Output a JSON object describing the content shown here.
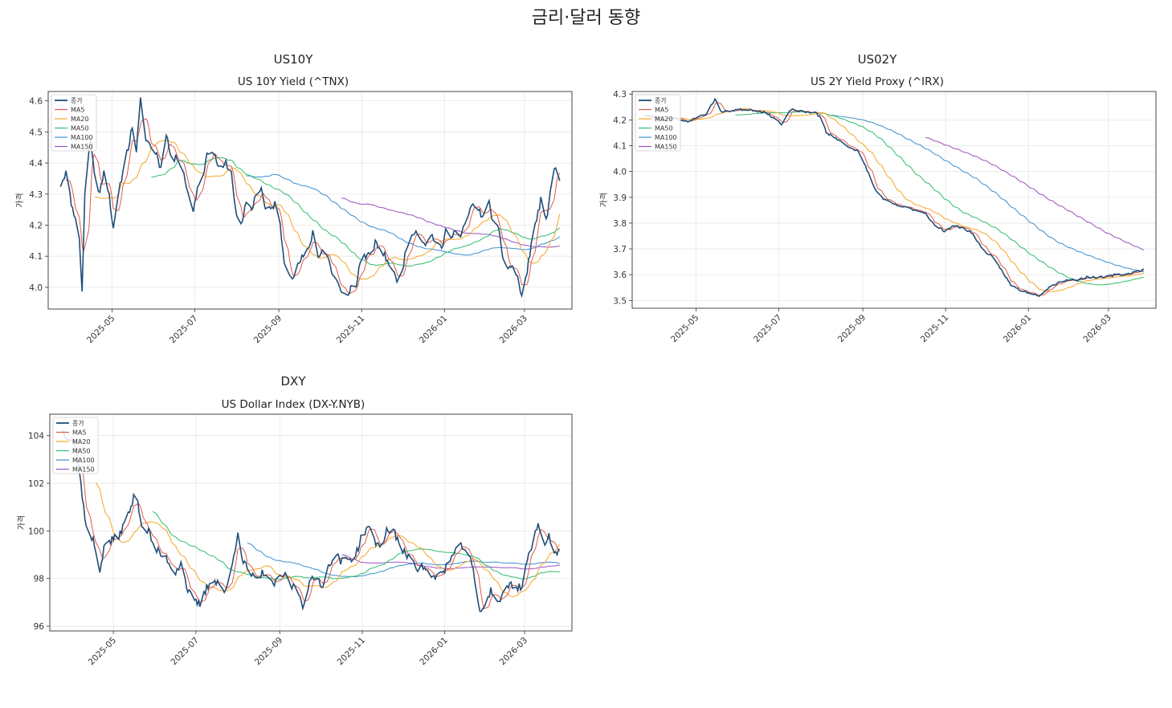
{
  "suptitle": "금리·달러 동향",
  "legend_labels": [
    "종가",
    "MA5",
    "MA20",
    "MA50",
    "MA100",
    "MA150"
  ],
  "series_colors": {
    "close": "#1f4e79",
    "ma5": "#e05a4a",
    "ma20": "#f5a623",
    "ma50": "#2ebd6b",
    "ma100": "#3a8fd0",
    "ma150": "#9b4fc0"
  },
  "chart_data": [
    {
      "type": "line",
      "panel_title": "US10Y",
      "title": "US 10Y Yield (^TNX)",
      "ylabel": "가격",
      "xlim": [
        "2025-03-15",
        "2026-04-05"
      ],
      "ylim": [
        3.93,
        4.63
      ],
      "x_ticks": [
        "2025-05",
        "2025-07",
        "2025-09",
        "2025-11",
        "2026-01",
        "2026-03"
      ],
      "y_ticks": [
        "4.0",
        "4.1",
        "4.2",
        "4.3",
        "4.4",
        "4.5",
        "4.6"
      ],
      "grid": true,
      "legend": "top-left",
      "start_date": "2025-03-24",
      "end_date": "2026-03-27",
      "close_anchors": [
        [
          "2025-03-24",
          4.33
        ],
        [
          "2025-03-28",
          4.37
        ],
        [
          "2025-04-02",
          4.25
        ],
        [
          "2025-04-05",
          4.22
        ],
        [
          "2025-04-07",
          4.15
        ],
        [
          "2025-04-09",
          3.99
        ],
        [
          "2025-04-11",
          4.3
        ],
        [
          "2025-04-15",
          4.48
        ],
        [
          "2025-04-18",
          4.37
        ],
        [
          "2025-04-22",
          4.3
        ],
        [
          "2025-04-25",
          4.38
        ],
        [
          "2025-04-29",
          4.3
        ],
        [
          "2025-05-02",
          4.18
        ],
        [
          "2025-05-06",
          4.3
        ],
        [
          "2025-05-10",
          4.4
        ],
        [
          "2025-05-14",
          4.47
        ],
        [
          "2025-05-16",
          4.52
        ],
        [
          "2025-05-19",
          4.44
        ],
        [
          "2025-05-22",
          4.6
        ],
        [
          "2025-05-26",
          4.48
        ],
        [
          "2025-05-30",
          4.45
        ],
        [
          "2025-06-03",
          4.43
        ],
        [
          "2025-06-06",
          4.38
        ],
        [
          "2025-06-10",
          4.5
        ],
        [
          "2025-06-14",
          4.4
        ],
        [
          "2025-06-18",
          4.42
        ],
        [
          "2025-06-22",
          4.39
        ],
        [
          "2025-06-26",
          4.3
        ],
        [
          "2025-06-30",
          4.25
        ],
        [
          "2025-07-03",
          4.32
        ],
        [
          "2025-07-08",
          4.38
        ],
        [
          "2025-07-12",
          4.46
        ],
        [
          "2025-07-16",
          4.42
        ],
        [
          "2025-07-20",
          4.37
        ],
        [
          "2025-07-24",
          4.4
        ],
        [
          "2025-07-28",
          4.37
        ],
        [
          "2025-08-01",
          4.22
        ],
        [
          "2025-08-05",
          4.2
        ],
        [
          "2025-08-08",
          4.28
        ],
        [
          "2025-08-12",
          4.25
        ],
        [
          "2025-08-15",
          4.3
        ],
        [
          "2025-08-19",
          4.32
        ],
        [
          "2025-08-22",
          4.25
        ],
        [
          "2025-08-26",
          4.25
        ],
        [
          "2025-08-29",
          4.27
        ],
        [
          "2025-09-02",
          4.2
        ],
        [
          "2025-09-05",
          4.08
        ],
        [
          "2025-09-09",
          4.05
        ],
        [
          "2025-09-12",
          4.03
        ],
        [
          "2025-09-16",
          4.08
        ],
        [
          "2025-09-19",
          4.1
        ],
        [
          "2025-09-23",
          4.12
        ],
        [
          "2025-09-26",
          4.18
        ],
        [
          "2025-09-30",
          4.1
        ],
        [
          "2025-10-03",
          4.12
        ],
        [
          "2025-10-07",
          4.1
        ],
        [
          "2025-10-10",
          4.05
        ],
        [
          "2025-10-14",
          4.02
        ],
        [
          "2025-10-17",
          3.98
        ],
        [
          "2025-10-21",
          3.97
        ],
        [
          "2025-10-24",
          4.0
        ],
        [
          "2025-10-28",
          4.0
        ],
        [
          "2025-10-31",
          4.09
        ],
        [
          "2025-11-04",
          4.1
        ],
        [
          "2025-11-07",
          4.1
        ],
        [
          "2025-11-11",
          4.14
        ],
        [
          "2025-11-14",
          4.13
        ],
        [
          "2025-11-18",
          4.1
        ],
        [
          "2025-11-21",
          4.08
        ],
        [
          "2025-11-25",
          4.04
        ],
        [
          "2025-11-28",
          4.02
        ],
        [
          "2025-12-02",
          4.08
        ],
        [
          "2025-12-05",
          4.14
        ],
        [
          "2025-12-09",
          4.18
        ],
        [
          "2025-12-12",
          4.18
        ],
        [
          "2025-12-16",
          4.15
        ],
        [
          "2025-12-19",
          4.14
        ],
        [
          "2025-12-23",
          4.17
        ],
        [
          "2025-12-26",
          4.14
        ],
        [
          "2025-12-30",
          4.12
        ],
        [
          "2026-01-02",
          4.18
        ],
        [
          "2026-01-06",
          4.17
        ],
        [
          "2026-01-09",
          4.18
        ],
        [
          "2026-01-13",
          4.16
        ],
        [
          "2026-01-16",
          4.2
        ],
        [
          "2026-01-20",
          4.25
        ],
        [
          "2026-01-23",
          4.27
        ],
        [
          "2026-01-27",
          4.24
        ],
        [
          "2026-01-30",
          4.23
        ],
        [
          "2026-02-03",
          4.27
        ],
        [
          "2026-02-06",
          4.21
        ],
        [
          "2026-02-10",
          4.18
        ],
        [
          "2026-02-13",
          4.1
        ],
        [
          "2026-02-17",
          4.06
        ],
        [
          "2026-02-20",
          4.07
        ],
        [
          "2026-02-24",
          4.03
        ],
        [
          "2026-02-27",
          3.97
        ],
        [
          "2026-03-03",
          4.05
        ],
        [
          "2026-03-06",
          4.14
        ],
        [
          "2026-03-10",
          4.22
        ],
        [
          "2026-03-13",
          4.28
        ],
        [
          "2026-03-17",
          4.21
        ],
        [
          "2026-03-20",
          4.31
        ],
        [
          "2026-03-24",
          4.39
        ],
        [
          "2026-03-27",
          4.34
        ]
      ]
    },
    {
      "type": "line",
      "panel_title": "US02Y",
      "title": "US 2Y Yield Proxy (^IRX)",
      "ylabel": "가격",
      "xlim": [
        "2025-03-15",
        "2026-04-05"
      ],
      "ylim": [
        3.47,
        4.31
      ],
      "x_ticks": [
        "2025-05",
        "2025-07",
        "2025-09",
        "2025-11",
        "2026-01",
        "2026-03"
      ],
      "y_ticks": [
        "3.5",
        "3.6",
        "3.7",
        "3.8",
        "3.9",
        "4.0",
        "4.1",
        "4.2",
        "4.3"
      ],
      "grid": true,
      "legend": "top-left",
      "start_date": "2025-03-24",
      "end_date": "2026-03-27",
      "close_anchors": [
        [
          "2025-03-24",
          4.22
        ],
        [
          "2025-04-05",
          4.2
        ],
        [
          "2025-04-15",
          4.21
        ],
        [
          "2025-04-25",
          4.19
        ],
        [
          "2025-05-01",
          4.21
        ],
        [
          "2025-05-08",
          4.22
        ],
        [
          "2025-05-15",
          4.28
        ],
        [
          "2025-05-20",
          4.23
        ],
        [
          "2025-06-01",
          4.24
        ],
        [
          "2025-06-10",
          4.24
        ],
        [
          "2025-06-20",
          4.23
        ],
        [
          "2025-06-30",
          4.2
        ],
        [
          "2025-07-03",
          4.18
        ],
        [
          "2025-07-10",
          4.24
        ],
        [
          "2025-07-20",
          4.23
        ],
        [
          "2025-07-28",
          4.23
        ],
        [
          "2025-08-02",
          4.2
        ],
        [
          "2025-08-05",
          4.15
        ],
        [
          "2025-08-12",
          4.13
        ],
        [
          "2025-08-20",
          4.1
        ],
        [
          "2025-08-28",
          4.08
        ],
        [
          "2025-09-03",
          4.02
        ],
        [
          "2025-09-10",
          3.93
        ],
        [
          "2025-09-17",
          3.89
        ],
        [
          "2025-09-25",
          3.87
        ],
        [
          "2025-10-03",
          3.86
        ],
        [
          "2025-10-10",
          3.85
        ],
        [
          "2025-10-17",
          3.84
        ],
        [
          "2025-10-24",
          3.79
        ],
        [
          "2025-10-31",
          3.77
        ],
        [
          "2025-11-07",
          3.79
        ],
        [
          "2025-11-14",
          3.78
        ],
        [
          "2025-11-21",
          3.76
        ],
        [
          "2025-11-28",
          3.7
        ],
        [
          "2025-12-05",
          3.67
        ],
        [
          "2025-12-12",
          3.62
        ],
        [
          "2025-12-19",
          3.56
        ],
        [
          "2025-12-26",
          3.54
        ],
        [
          "2026-01-02",
          3.53
        ],
        [
          "2026-01-09",
          3.52
        ],
        [
          "2026-01-16",
          3.55
        ],
        [
          "2026-01-23",
          3.57
        ],
        [
          "2026-01-30",
          3.58
        ],
        [
          "2026-02-06",
          3.58
        ],
        [
          "2026-02-13",
          3.59
        ],
        [
          "2026-02-20",
          3.59
        ],
        [
          "2026-02-27",
          3.59
        ],
        [
          "2026-03-06",
          3.6
        ],
        [
          "2026-03-13",
          3.6
        ],
        [
          "2026-03-20",
          3.61
        ],
        [
          "2026-03-27",
          3.62
        ]
      ]
    },
    {
      "type": "line",
      "panel_title": "DXY",
      "title": "US Dollar Index (DX-Y.NYB)",
      "ylabel": "가격",
      "xlim": [
        "2025-03-15",
        "2026-04-05"
      ],
      "ylim": [
        95.8,
        104.9
      ],
      "x_ticks": [
        "2025-05",
        "2025-07",
        "2025-09",
        "2025-11",
        "2026-01",
        "2026-03"
      ],
      "y_ticks": [
        "96",
        "98",
        "100",
        "102",
        "104"
      ],
      "grid": true,
      "legend": "top-left",
      "start_date": "2025-03-24",
      "end_date": "2026-03-27",
      "close_anchors": [
        [
          "2025-03-24",
          104.2
        ],
        [
          "2025-03-28",
          104.0
        ],
        [
          "2025-04-02",
          103.8
        ],
        [
          "2025-04-06",
          102.5
        ],
        [
          "2025-04-09",
          101.0
        ],
        [
          "2025-04-12",
          99.8
        ],
        [
          "2025-04-16",
          99.6
        ],
        [
          "2025-04-21",
          98.4
        ],
        [
          "2025-04-25",
          99.5
        ],
        [
          "2025-04-30",
          99.6
        ],
        [
          "2025-05-05",
          99.8
        ],
        [
          "2025-05-10",
          100.4
        ],
        [
          "2025-05-14",
          101.0
        ],
        [
          "2025-05-18",
          101.7
        ],
        [
          "2025-05-22",
          100.2
        ],
        [
          "2025-05-27",
          100.0
        ],
        [
          "2025-05-31",
          99.3
        ],
        [
          "2025-06-05",
          99.0
        ],
        [
          "2025-06-10",
          98.8
        ],
        [
          "2025-06-15",
          98.2
        ],
        [
          "2025-06-20",
          98.7
        ],
        [
          "2025-06-25",
          97.5
        ],
        [
          "2025-06-30",
          97.0
        ],
        [
          "2025-07-04",
          96.9
        ],
        [
          "2025-07-09",
          97.6
        ],
        [
          "2025-07-14",
          98.0
        ],
        [
          "2025-07-18",
          97.8
        ],
        [
          "2025-07-23",
          97.4
        ],
        [
          "2025-07-28",
          98.6
        ],
        [
          "2025-08-01",
          100.0
        ],
        [
          "2025-08-05",
          98.7
        ],
        [
          "2025-08-10",
          98.2
        ],
        [
          "2025-08-15",
          97.9
        ],
        [
          "2025-08-20",
          98.3
        ],
        [
          "2025-08-25",
          97.8
        ],
        [
          "2025-08-30",
          97.8
        ],
        [
          "2025-09-04",
          98.2
        ],
        [
          "2025-09-09",
          97.7
        ],
        [
          "2025-09-14",
          97.6
        ],
        [
          "2025-09-18",
          96.9
        ],
        [
          "2025-09-23",
          97.8
        ],
        [
          "2025-09-28",
          98.1
        ],
        [
          "2025-10-03",
          97.7
        ],
        [
          "2025-10-08",
          98.7
        ],
        [
          "2025-10-12",
          99.0
        ],
        [
          "2025-10-17",
          98.7
        ],
        [
          "2025-10-22",
          98.8
        ],
        [
          "2025-10-27",
          99.0
        ],
        [
          "2025-11-01",
          99.8
        ],
        [
          "2025-11-05",
          100.2
        ],
        [
          "2025-11-10",
          99.6
        ],
        [
          "2025-11-14",
          99.3
        ],
        [
          "2025-11-19",
          100.0
        ],
        [
          "2025-11-24",
          100.1
        ],
        [
          "2025-11-28",
          99.4
        ],
        [
          "2025-12-03",
          99.0
        ],
        [
          "2025-12-08",
          98.9
        ],
        [
          "2025-12-12",
          98.4
        ],
        [
          "2025-12-17",
          98.5
        ],
        [
          "2025-12-22",
          98.0
        ],
        [
          "2025-12-26",
          98.1
        ],
        [
          "2025-12-31",
          98.3
        ],
        [
          "2026-01-05",
          98.8
        ],
        [
          "2026-01-09",
          99.1
        ],
        [
          "2026-01-14",
          99.4
        ],
        [
          "2026-01-19",
          99.0
        ],
        [
          "2026-01-23",
          98.0
        ],
        [
          "2026-01-27",
          96.5
        ],
        [
          "2026-01-30",
          96.9
        ],
        [
          "2026-02-04",
          97.5
        ],
        [
          "2026-02-09",
          97.0
        ],
        [
          "2026-02-13",
          97.3
        ],
        [
          "2026-02-18",
          97.8
        ],
        [
          "2026-02-23",
          97.6
        ],
        [
          "2026-02-27",
          97.7
        ],
        [
          "2026-03-03",
          98.8
        ],
        [
          "2026-03-07",
          99.5
        ],
        [
          "2026-03-11",
          100.2
        ],
        [
          "2026-03-15",
          99.5
        ],
        [
          "2026-03-19",
          99.8
        ],
        [
          "2026-03-23",
          99.0
        ],
        [
          "2026-03-27",
          99.3
        ]
      ]
    }
  ]
}
